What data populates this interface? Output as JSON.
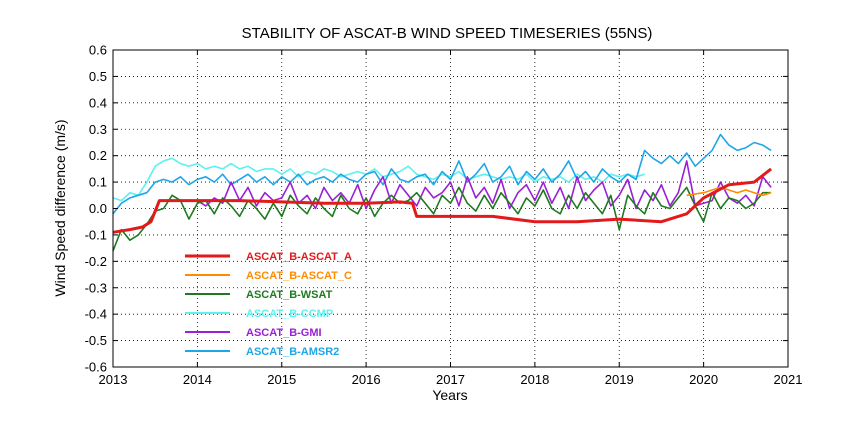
{
  "chart_data": {
    "type": "line",
    "title": "STABILITY OF ASCAT-B WIND SPEED TIMESERIES (55NS)",
    "xlabel": "Years",
    "ylabel": "Wind Speed difference (m/s)",
    "xlim": [
      2013,
      2021
    ],
    "ylim": [
      -0.6,
      0.6
    ],
    "xticks": [
      2013,
      2014,
      2015,
      2016,
      2017,
      2018,
      2019,
      2020,
      2021
    ],
    "yticks": [
      -0.6,
      -0.5,
      -0.4,
      -0.3,
      -0.2,
      -0.1,
      0.0,
      0.1,
      0.2,
      0.3,
      0.4,
      0.5,
      0.6
    ],
    "ytick_labels": [
      "-0.6",
      "-0.5",
      "-0.4",
      "-0.3",
      "-0.2",
      "-0.1",
      "0.0",
      "0.1",
      "0.2",
      "0.3",
      "0.4",
      "0.5",
      "0.6"
    ],
    "grid": true,
    "legend_position": "lower-left",
    "series": [
      {
        "name": "ASCAT_B-ASCAT_A",
        "color": "#e31a1c",
        "x": [
          2013.0,
          2013.2,
          2013.35,
          2013.45,
          2013.55,
          2014.0,
          2014.5,
          2015.0,
          2015.5,
          2016.0,
          2016.4,
          2016.55,
          2016.6,
          2017.0,
          2017.5,
          2018.0,
          2018.5,
          2019.0,
          2019.5,
          2019.8,
          2020.0,
          2020.3,
          2020.6,
          2020.8
        ],
        "y": [
          -0.09,
          -0.08,
          -0.07,
          -0.05,
          0.03,
          0.03,
          0.03,
          0.025,
          0.02,
          0.02,
          0.025,
          0.02,
          -0.03,
          -0.03,
          -0.03,
          -0.05,
          -0.05,
          -0.04,
          -0.05,
          -0.02,
          0.04,
          0.09,
          0.1,
          0.15
        ]
      },
      {
        "name": "ASCAT_B-ASCAT_C",
        "color": "#ff8c00",
        "x": [
          2019.8,
          2020.0,
          2020.1,
          2020.2,
          2020.3,
          2020.4,
          2020.5,
          2020.6,
          2020.7,
          2020.8
        ],
        "y": [
          0.05,
          0.06,
          0.07,
          0.08,
          0.07,
          0.06,
          0.07,
          0.06,
          0.05,
          0.06
        ]
      },
      {
        "name": "ASCAT_B-WSAT",
        "color": "#1f7a1f",
        "x": [
          2013.0,
          2013.1,
          2013.2,
          2013.3,
          2013.4,
          2013.5,
          2013.6,
          2013.7,
          2013.8,
          2013.9,
          2014.0,
          2014.1,
          2014.2,
          2014.3,
          2014.4,
          2014.5,
          2014.6,
          2014.7,
          2014.8,
          2014.9,
          2015.0,
          2015.1,
          2015.2,
          2015.3,
          2015.4,
          2015.5,
          2015.6,
          2015.7,
          2015.8,
          2015.9,
          2016.0,
          2016.1,
          2016.2,
          2016.3,
          2016.4,
          2016.5,
          2016.6,
          2016.7,
          2016.8,
          2016.9,
          2017.0,
          2017.1,
          2017.2,
          2017.3,
          2017.4,
          2017.5,
          2017.6,
          2017.7,
          2017.8,
          2017.9,
          2018.0,
          2018.1,
          2018.2,
          2018.3,
          2018.4,
          2018.5,
          2018.6,
          2018.7,
          2018.8,
          2018.9,
          2019.0,
          2019.1,
          2019.2,
          2019.3,
          2019.4,
          2019.5,
          2019.6,
          2019.7,
          2019.8,
          2019.9,
          2020.0,
          2020.1,
          2020.2,
          2020.3,
          2020.4,
          2020.5,
          2020.6,
          2020.7,
          2020.8
        ],
        "y": [
          -0.16,
          -0.08,
          -0.12,
          -0.1,
          -0.06,
          -0.01,
          0.0,
          0.05,
          0.03,
          -0.04,
          0.02,
          0.03,
          -0.02,
          0.04,
          0.01,
          -0.03,
          0.03,
          0.0,
          -0.04,
          0.02,
          -0.03,
          0.05,
          0.01,
          -0.02,
          0.04,
          0.0,
          -0.03,
          0.05,
          0.0,
          -0.02,
          0.04,
          -0.03,
          0.02,
          0.05,
          0.02,
          0.03,
          0.06,
          0.02,
          -0.02,
          0.05,
          0.02,
          0.08,
          0.02,
          -0.01,
          0.05,
          0.0,
          0.06,
          0.02,
          -0.02,
          0.04,
          0.01,
          0.07,
          0.0,
          -0.02,
          0.05,
          0.0,
          0.06,
          0.02,
          -0.02,
          0.05,
          -0.08,
          0.05,
          0.01,
          -0.02,
          0.06,
          0.01,
          0.0,
          0.04,
          0.08,
          0.01,
          -0.05,
          0.06,
          0.0,
          0.04,
          0.03,
          0.0,
          0.02,
          0.06,
          0.06
        ]
      },
      {
        "name": "ASCAT_B-CCMP",
        "color": "#5ff0f0",
        "x": [
          2013.0,
          2013.1,
          2013.2,
          2013.3,
          2013.4,
          2013.5,
          2013.6,
          2013.7,
          2013.8,
          2013.9,
          2014.0,
          2014.1,
          2014.2,
          2014.3,
          2014.4,
          2014.5,
          2014.6,
          2014.7,
          2014.8,
          2014.9,
          2015.0,
          2015.1,
          2015.2,
          2015.3,
          2015.4,
          2015.5,
          2015.6,
          2015.7,
          2015.8,
          2015.9,
          2016.0,
          2016.1,
          2016.2,
          2016.3,
          2016.4,
          2016.5,
          2016.6,
          2016.7,
          2016.8,
          2016.9,
          2017.0,
          2017.1,
          2017.2,
          2017.3,
          2017.4,
          2017.5,
          2017.6,
          2017.7,
          2017.8,
          2017.9,
          2018.0,
          2018.1,
          2018.2,
          2018.3,
          2018.4,
          2018.5,
          2018.6,
          2018.7,
          2018.8,
          2018.9,
          2019.0,
          2019.1,
          2019.2,
          2019.3
        ],
        "y": [
          0.04,
          0.03,
          0.06,
          0.05,
          0.1,
          0.16,
          0.18,
          0.19,
          0.17,
          0.16,
          0.17,
          0.15,
          0.16,
          0.15,
          0.17,
          0.15,
          0.16,
          0.14,
          0.15,
          0.15,
          0.13,
          0.15,
          0.12,
          0.14,
          0.13,
          0.15,
          0.14,
          0.12,
          0.13,
          0.14,
          0.13,
          0.15,
          0.12,
          0.13,
          0.14,
          0.16,
          0.13,
          0.12,
          0.11,
          0.13,
          0.12,
          0.14,
          0.11,
          0.12,
          0.13,
          0.12,
          0.11,
          0.12,
          0.11,
          0.13,
          0.1,
          0.12,
          0.11,
          0.12,
          0.1,
          0.13,
          0.11,
          0.12,
          0.1,
          0.13,
          0.12,
          0.13,
          0.12,
          0.13
        ]
      },
      {
        "name": "ASCAT_B-GMI",
        "color": "#9a1fd6",
        "x": [
          2014.0,
          2014.1,
          2014.2,
          2014.3,
          2014.4,
          2014.5,
          2014.6,
          2014.7,
          2014.8,
          2014.9,
          2015.0,
          2015.1,
          2015.2,
          2015.3,
          2015.4,
          2015.5,
          2015.6,
          2015.7,
          2015.8,
          2015.9,
          2016.0,
          2016.1,
          2016.2,
          2016.3,
          2016.4,
          2016.5,
          2016.6,
          2016.7,
          2016.8,
          2016.9,
          2017.0,
          2017.1,
          2017.2,
          2017.3,
          2017.4,
          2017.5,
          2017.6,
          2017.7,
          2017.8,
          2017.9,
          2018.0,
          2018.1,
          2018.2,
          2018.3,
          2018.4,
          2018.5,
          2018.6,
          2018.7,
          2018.8,
          2018.9,
          2019.0,
          2019.1,
          2019.2,
          2019.3,
          2019.4,
          2019.5,
          2019.6,
          2019.7,
          2019.8,
          2019.9,
          2020.0,
          2020.1,
          2020.2,
          2020.3,
          2020.4,
          2020.5,
          2020.6,
          2020.7,
          2020.8
        ],
        "y": [
          0.03,
          0.01,
          0.04,
          0.02,
          0.1,
          0.03,
          0.08,
          0.01,
          0.06,
          0.03,
          0.04,
          0.1,
          0.02,
          0.05,
          0.0,
          0.08,
          0.03,
          0.06,
          0.02,
          0.09,
          0.0,
          0.07,
          0.12,
          0.02,
          0.09,
          0.05,
          0.01,
          0.08,
          0.04,
          0.06,
          0.1,
          0.01,
          0.12,
          0.04,
          0.08,
          0.02,
          0.11,
          0.0,
          0.06,
          0.09,
          0.03,
          0.1,
          0.02,
          0.08,
          0.0,
          0.12,
          0.03,
          0.07,
          0.1,
          0.01,
          0.05,
          0.11,
          0.0,
          0.07,
          0.03,
          0.09,
          0.01,
          0.06,
          0.18,
          0.01,
          0.02,
          0.03,
          0.1,
          0.04,
          0.02,
          0.05,
          0.01,
          0.12,
          0.08
        ]
      },
      {
        "name": "ASCAT_B-AMSR2",
        "color": "#1fa6e8",
        "x": [
          2013.0,
          2013.1,
          2013.2,
          2013.3,
          2013.4,
          2013.5,
          2013.6,
          2013.7,
          2013.8,
          2013.9,
          2014.0,
          2014.1,
          2014.2,
          2014.3,
          2014.4,
          2014.5,
          2014.6,
          2014.7,
          2014.8,
          2014.9,
          2015.0,
          2015.1,
          2015.2,
          2015.3,
          2015.4,
          2015.5,
          2015.6,
          2015.7,
          2015.8,
          2015.9,
          2016.0,
          2016.1,
          2016.2,
          2016.3,
          2016.4,
          2016.5,
          2016.6,
          2016.7,
          2016.8,
          2016.9,
          2017.0,
          2017.1,
          2017.2,
          2017.3,
          2017.4,
          2017.5,
          2017.6,
          2017.7,
          2017.8,
          2017.9,
          2018.0,
          2018.1,
          2018.2,
          2018.3,
          2018.4,
          2018.5,
          2018.6,
          2018.7,
          2018.8,
          2018.9,
          2019.0,
          2019.1,
          2019.2,
          2019.3,
          2019.4,
          2019.5,
          2019.6,
          2019.7,
          2019.8,
          2019.9,
          2020.0,
          2020.1,
          2020.2,
          2020.3,
          2020.4,
          2020.5,
          2020.6,
          2020.7,
          2020.8
        ],
        "y": [
          -0.02,
          0.02,
          0.04,
          0.05,
          0.06,
          0.1,
          0.11,
          0.1,
          0.12,
          0.09,
          0.11,
          0.12,
          0.1,
          0.13,
          0.09,
          0.11,
          0.13,
          0.1,
          0.12,
          0.09,
          0.12,
          0.1,
          0.13,
          0.09,
          0.11,
          0.12,
          0.1,
          0.13,
          0.11,
          0.1,
          0.13,
          0.14,
          0.09,
          0.15,
          0.11,
          0.1,
          0.12,
          0.13,
          0.09,
          0.14,
          0.11,
          0.18,
          0.1,
          0.13,
          0.17,
          0.1,
          0.12,
          0.16,
          0.09,
          0.14,
          0.11,
          0.15,
          0.1,
          0.13,
          0.18,
          0.11,
          0.14,
          0.1,
          0.15,
          0.12,
          0.1,
          0.13,
          0.11,
          0.22,
          0.19,
          0.17,
          0.2,
          0.17,
          0.21,
          0.16,
          0.19,
          0.22,
          0.28,
          0.24,
          0.22,
          0.23,
          0.25,
          0.24,
          0.22
        ]
      }
    ]
  }
}
